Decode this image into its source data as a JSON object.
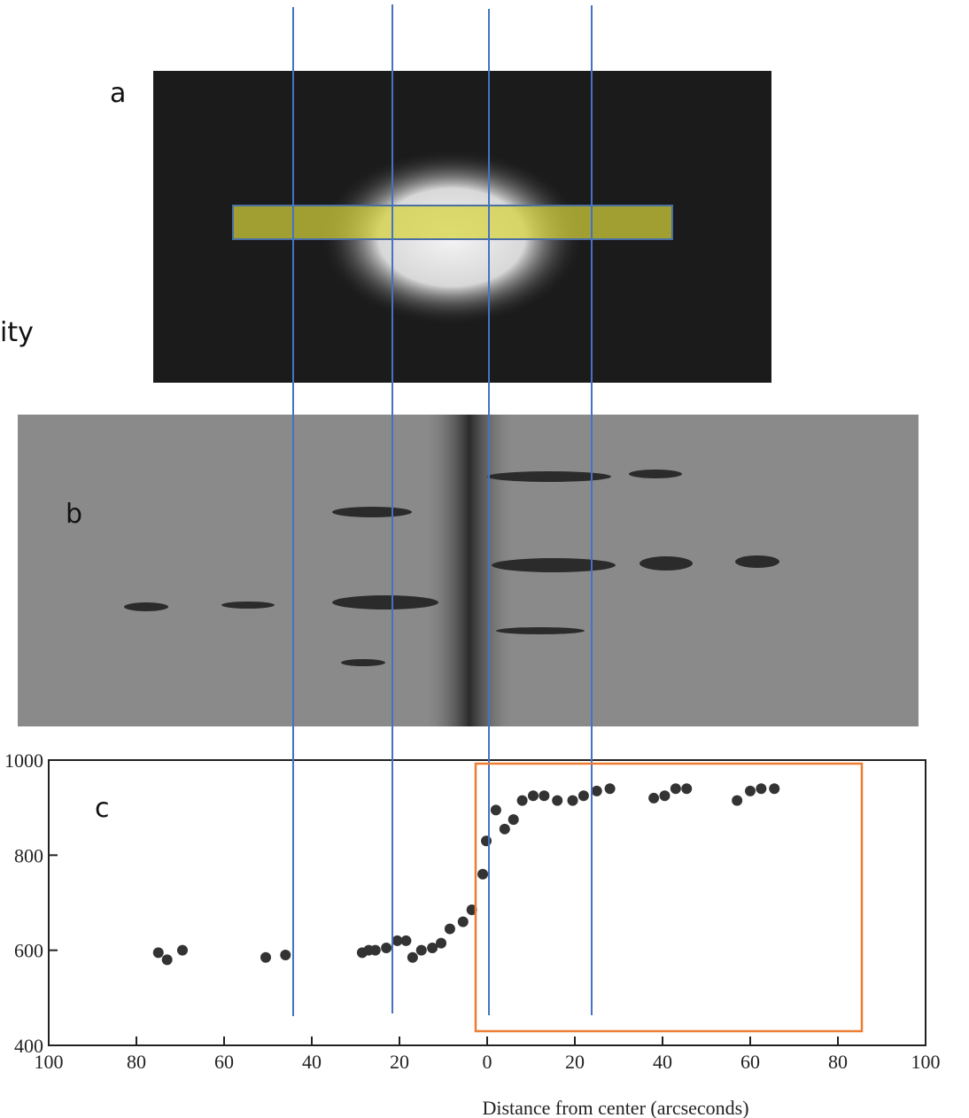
{
  "chart_data": {
    "type": "scatter",
    "xlabel": "Distance from center (arcseconds)",
    "x": [
      -75,
      -73,
      -69.5,
      -50.5,
      -46,
      -28.5,
      -27,
      -25.5,
      -23,
      -20.5,
      -18.5,
      -17,
      -15,
      -12.5,
      -10.5,
      -8.5,
      -5.5,
      -3.5,
      -1,
      -0.2,
      2,
      4,
      6,
      8,
      10.5,
      13,
      16,
      19.5,
      22,
      25,
      28,
      38,
      40.5,
      43,
      45.5,
      57,
      60,
      62.5,
      65.5
    ],
    "values": [
      595,
      580,
      600,
      585,
      590,
      595,
      600,
      600,
      605,
      620,
      620,
      585,
      600,
      605,
      615,
      645,
      660,
      685,
      760,
      830,
      895,
      855,
      875,
      915,
      925,
      925,
      915,
      915,
      925,
      935,
      940,
      920,
      925,
      940,
      940,
      915,
      935,
      940,
      940
    ],
    "color": "#333333",
    "xlim": [
      -100,
      100
    ],
    "ylim": [
      400,
      1000
    ],
    "xticks": [
      {
        "value": -100,
        "label": "100"
      },
      {
        "value": -80,
        "label": "80"
      },
      {
        "value": -60,
        "label": "60"
      },
      {
        "value": -40,
        "label": "40"
      },
      {
        "value": -20,
        "label": "20"
      },
      0,
      20,
      40,
      60,
      80,
      100
    ],
    "yticks": [
      400,
      600,
      800,
      1000
    ]
  },
  "annotations": {
    "panel_a": "a",
    "panel_b": "b",
    "panel_c": "c",
    "side_text": "ity"
  }
}
